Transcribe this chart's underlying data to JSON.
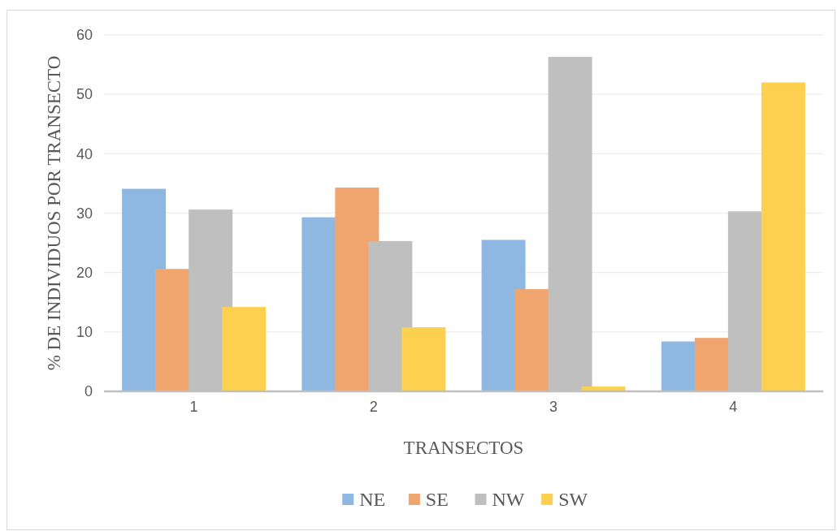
{
  "chart_data": {
    "type": "bar",
    "categories": [
      "1",
      "2",
      "3",
      "4"
    ],
    "xlabel": "TRANSECTOS",
    "ylabel": "% DE INDIVIDUOS POR TRANSECTO",
    "ylim": [
      0,
      60
    ],
    "yticks": [
      0,
      10,
      20,
      30,
      40,
      50,
      60
    ],
    "grid": "y",
    "legend": "bottom",
    "series": [
      {
        "name": "NE",
        "color": "#8eb8e1",
        "values": [
          34.1,
          29.3,
          25.5,
          8.4
        ]
      },
      {
        "name": "SE",
        "color": "#f0a56f",
        "values": [
          20.6,
          34.3,
          17.2,
          9.0
        ]
      },
      {
        "name": "NW",
        "color": "#bfbfbf",
        "values": [
          30.6,
          25.3,
          56.3,
          30.3
        ]
      },
      {
        "name": "SW",
        "color": "#fdd14f",
        "values": [
          14.2,
          10.8,
          0.8,
          52.0
        ]
      }
    ]
  }
}
